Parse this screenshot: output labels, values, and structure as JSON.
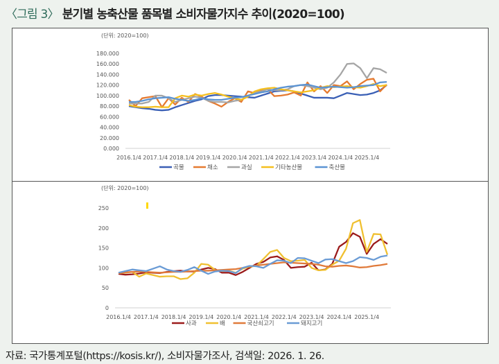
{
  "title_prefix": "〈그림 3〉",
  "title": "분기별 농축산물 품목별 소비자물가지수 추이(2020=100)",
  "source": "자료: 국가통계포털(https://kosis.kr/), 소비자물가조사, 검색일: 2026. 1. 26.",
  "chart_data": [
    {
      "type": "line",
      "unit_label": "(단위: 2020=100)",
      "x_ticks": [
        "2016.1/4",
        "2017.1/4",
        "2018.1/4",
        "2019.1/4",
        "2020.1/4",
        "2021.1/4",
        "2022.1/4",
        "2023.1/4",
        "2024.1/4",
        "2025.1/4"
      ],
      "y_ticks": [
        "0.000",
        "20.000",
        "40.000",
        "60.000",
        "80.000",
        "100.000",
        "120.000",
        "140.000",
        "160.000",
        "180.000"
      ],
      "ylim": [
        0,
        180
      ],
      "legend": "bottom",
      "grid": false,
      "series": [
        {
          "name": "곡물",
          "color": "#3a5fb5",
          "values": [
            80,
            78,
            76,
            75,
            73,
            72,
            73,
            78,
            82,
            86,
            90,
            93,
            99,
            101,
            101,
            100,
            99,
            98,
            97,
            96,
            100,
            104,
            108,
            109,
            110,
            108,
            104,
            100,
            96,
            96,
            96,
            95,
            100,
            105,
            103,
            101,
            102,
            105,
            110,
            120
          ]
        },
        {
          "name": "채소",
          "color": "#e57a30",
          "values": [
            92,
            80,
            95,
            97,
            99,
            78,
            95,
            83,
            96,
            88,
            103,
            98,
            90,
            85,
            79,
            88,
            95,
            88,
            108,
            105,
            110,
            112,
            99,
            100,
            102,
            106,
            100,
            125,
            108,
            118,
            105,
            120,
            118,
            127,
            112,
            122,
            130,
            132,
            108,
            121
          ]
        },
        {
          "name": "과실",
          "color": "#a5a5a5",
          "values": [
            85,
            85,
            85,
            88,
            100,
            100,
            95,
            88,
            92,
            95,
            98,
            96,
            90,
            88,
            88,
            87,
            90,
            92,
            100,
            105,
            108,
            112,
            110,
            110,
            112,
            118,
            120,
            118,
            115,
            112,
            115,
            125,
            140,
            160,
            161,
            152,
            133,
            152,
            150,
            143
          ]
        },
        {
          "name": "기타농산물",
          "color": "#f5bf1e",
          "values": [
            82,
            79,
            78,
            78,
            79,
            78,
            78,
            95,
            100,
            98,
            102,
            100,
            103,
            105,
            102,
            98,
            95,
            92,
            98,
            108,
            112,
            114,
            115,
            112,
            110,
            108,
            106,
            108,
            110,
            115,
            118,
            116,
            117,
            118,
            116,
            115,
            118,
            122,
            118,
            120
          ]
        },
        {
          "name": "축산물",
          "color": "#5b93d3",
          "values": [
            88,
            88,
            90,
            93,
            95,
            96,
            97,
            94,
            92,
            90,
            92,
            95,
            93,
            92,
            92,
            94,
            96,
            97,
            100,
            103,
            106,
            108,
            112,
            115,
            117,
            118,
            120,
            121,
            118,
            115,
            116,
            117,
            116,
            115,
            116,
            118,
            119,
            120,
            125,
            126
          ]
        }
      ]
    },
    {
      "type": "line",
      "unit_label": "(단위: 2020=100)",
      "x_ticks": [
        "2016.1/4",
        "2017.1/4",
        "2018.1/4",
        "2019.1/4",
        "2020.1/4",
        "2021.1/4",
        "2022.1/4",
        "2023.1/4",
        "2024.1/4",
        "2025.1/4"
      ],
      "y_ticks": [
        "0",
        "50",
        "100",
        "150",
        "200",
        "250"
      ],
      "ylim": [
        0,
        250
      ],
      "legend": "bottom",
      "grid": false,
      "series": [
        {
          "name": "사과",
          "color": "#9b1b1b",
          "values": [
            85,
            83,
            84,
            86,
            89,
            88,
            87,
            90,
            92,
            93,
            91,
            91,
            96,
            100,
            97,
            88,
            88,
            82,
            90,
            100,
            110,
            115,
            126,
            129,
            120,
            100,
            102,
            103,
            113,
            94,
            96,
            110,
            153,
            165,
            187,
            178,
            135,
            160,
            172,
            160
          ]
        },
        {
          "name": "배",
          "color": "#f0c030",
          "values": [
            87,
            88,
            90,
            78,
            86,
            82,
            78,
            79,
            79,
            72,
            74,
            88,
            110,
            108,
            95,
            92,
            93,
            88,
            98,
            103,
            105,
            122,
            140,
            145,
            125,
            117,
            118,
            120,
            100,
            94,
            95,
            108,
            118,
            148,
            212,
            220,
            140,
            185,
            184,
            133
          ]
        },
        {
          "name": "국산쇠고기",
          "color": "#e07a3a",
          "values": [
            87,
            89,
            90,
            91,
            90,
            89,
            88,
            89,
            90,
            90,
            91,
            92,
            93,
            93,
            94,
            95,
            96,
            97,
            100,
            104,
            106,
            108,
            110,
            112,
            114,
            113,
            112,
            111,
            110,
            108,
            104,
            103,
            105,
            106,
            104,
            101,
            102,
            105,
            107,
            110
          ]
        },
        {
          "name": "돼지고기",
          "color": "#6a9bd5",
          "values": [
            88,
            92,
            96,
            94,
            92,
            98,
            104,
            96,
            92,
            90,
            95,
            102,
            93,
            85,
            91,
            93,
            92,
            87,
            100,
            105,
            104,
            100,
            110,
            119,
            118,
            112,
            125,
            124,
            118,
            112,
            121,
            122,
            117,
            112,
            117,
            127,
            125,
            120,
            128,
            131
          ]
        }
      ]
    }
  ]
}
